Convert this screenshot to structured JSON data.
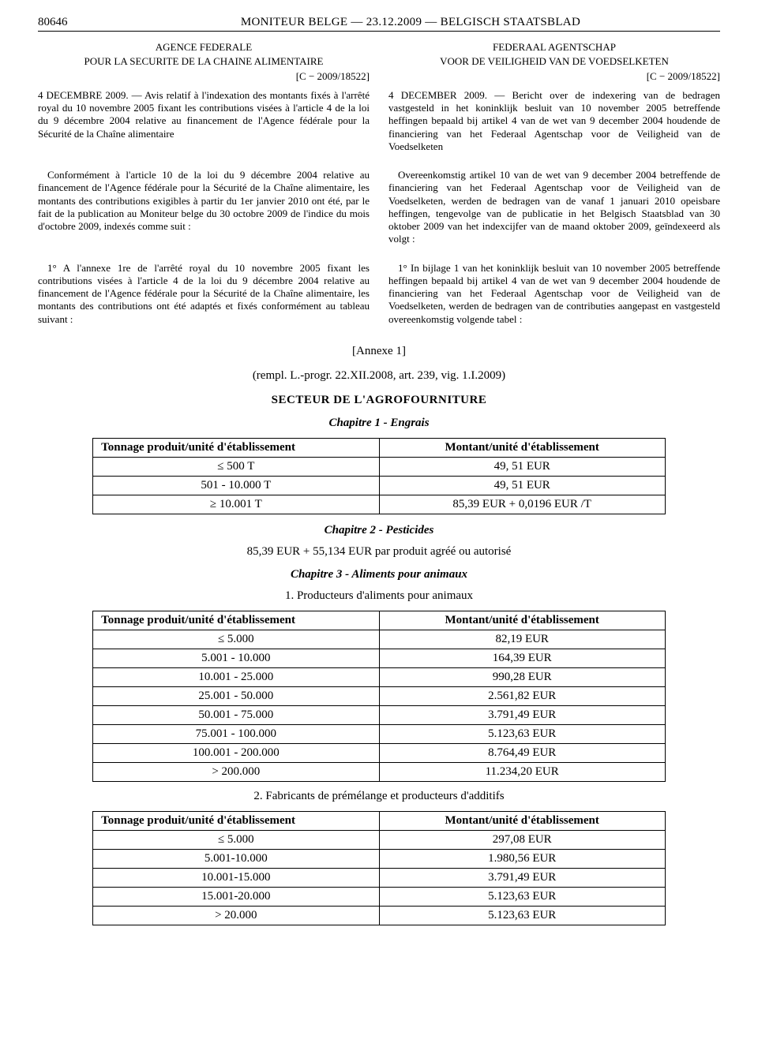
{
  "header": {
    "page_num": "80646",
    "title": "MONITEUR BELGE — 23.12.2009 — BELGISCH STAATSBLAD"
  },
  "left": {
    "agency_l1": "AGENCE FEDERALE",
    "agency_l2": "POUR LA SECURITE DE LA CHAINE ALIMENTAIRE",
    "ref": "[C − 2009/18522]",
    "p1": "4 DECEMBRE 2009. — Avis relatif à l'indexation des montants fixés à l'arrêté royal du 10 novembre 2005 fixant les contributions visées à l'article 4 de la loi du 9 décembre 2004 relative au financement de l'Agence fédérale pour la Sécurité de la Chaîne alimentaire",
    "p2": "Conformément à l'article 10 de la loi du 9 décembre 2004 relative au financement de l'Agence fédérale pour la Sécurité de la Chaîne alimentaire, les montants des contributions exigibles à partir du 1er janvier 2010 ont été, par le fait de la publication au Moniteur belge du 30 octobre 2009 de l'indice du mois d'octobre 2009, indexés comme suit :",
    "p3": "1° A l'annexe 1re de l'arrêté royal du 10 novembre 2005 fixant les contributions visées à l'article 4 de la loi du 9 décembre 2004 relative au financement de l'Agence fédérale pour la Sécurité de la Chaîne alimentaire, les montants des contributions ont été adaptés et fixés conformément au tableau suivant :"
  },
  "right": {
    "agency_l1": "FEDERAAL AGENTSCHAP",
    "agency_l2": "VOOR DE VEILIGHEID VAN DE VOEDSELKETEN",
    "ref": "[C − 2009/18522]",
    "p1": "4 DECEMBER 2009. — Bericht over de indexering van de bedragen vastgesteld in het koninklijk besluit van 10 november 2005 betreffende heffingen bepaald bij artikel 4 van de wet van 9 december 2004 houdende de financiering van het Federaal Agentschap voor de Veiligheid van de Voedselketen",
    "p2": "Overeenkomstig artikel 10 van de wet van 9 december 2004 betreffende de financiering van het Federaal Agentschap voor de Veiligheid van de Voedselketen, werden de bedragen van de vanaf 1 januari 2010 opeisbare heffingen, tengevolge van de publicatie in het Belgisch Staatsblad van 30 oktober 2009 van het indexcijfer van de maand oktober 2009, geïndexeerd als volgt :",
    "p3": "1° In bijlage 1 van het koninklijk besluit van 10 november 2005 betreffende heffingen bepaald bij artikel 4 van de wet van 9 december 2004 houdende de financiering van het Federaal Agentschap voor de Veiligheid van de Voedselketen, werden de bedragen van de contributies aangepast en vastgesteld overeenkomstig volgende tabel :"
  },
  "annex": {
    "line1": "[Annexe 1]",
    "line2": "(rempl. L.-progr. 22.XII.2008, art. 239, vig. 1.I.2009)"
  },
  "section": "SECTEUR DE L'AGROFOURNITURE",
  "chapter1": "Chapitre 1 - Engrais",
  "table1": {
    "h1": "Tonnage produit/unité d'établissement",
    "h2": "Montant/unité d'établissement",
    "rows": [
      {
        "c1": "≤ 500 T",
        "c2": "49, 51 EUR"
      },
      {
        "c1": "501 - 10.000 T",
        "c2": "49, 51 EUR"
      },
      {
        "c1": "≥ 10.001 T",
        "c2": "85,39 EUR + 0,0196 EUR /T"
      }
    ]
  },
  "chapter2": "Chapitre 2 - Pesticides",
  "note2": "85,39 EUR + 55,134 EUR par produit agréé ou autorisé",
  "chapter3": "Chapitre 3 - Aliments pour animaux",
  "sub3_1": "1. Producteurs d'aliments pour animaux",
  "table3": {
    "h1": "Tonnage produit/unité d'établissement",
    "h2": "Montant/unité d'établissement",
    "rows": [
      {
        "c1": "≤ 5.000",
        "c2": "82,19 EUR"
      },
      {
        "c1": "5.001 - 10.000",
        "c2": "164,39 EUR"
      },
      {
        "c1": "10.001 - 25.000",
        "c2": "990,28 EUR"
      },
      {
        "c1": "25.001 - 50.000",
        "c2": "2.561,82 EUR"
      },
      {
        "c1": "50.001 - 75.000",
        "c2": "3.791,49 EUR"
      },
      {
        "c1": "75.001 - 100.000",
        "c2": "5.123,63 EUR"
      },
      {
        "c1": "100.001 - 200.000",
        "c2": "8.764,49 EUR"
      },
      {
        "c1": "> 200.000",
        "c2": "11.234,20 EUR"
      }
    ]
  },
  "sub3_2": "2. Fabricants de prémélange et producteurs d'additifs",
  "table4": {
    "h1": "Tonnage produit/unité d'établissement",
    "h2": "Montant/unité d'établissement",
    "rows": [
      {
        "c1": "≤ 5.000",
        "c2": "297,08 EUR"
      },
      {
        "c1": "5.001-10.000",
        "c2": "1.980,56 EUR"
      },
      {
        "c1": "10.001-15.000",
        "c2": "3.791,49 EUR"
      },
      {
        "c1": "15.001-20.000",
        "c2": "5.123,63 EUR"
      },
      {
        "c1": "> 20.000",
        "c2": "5.123,63 EUR"
      }
    ]
  }
}
